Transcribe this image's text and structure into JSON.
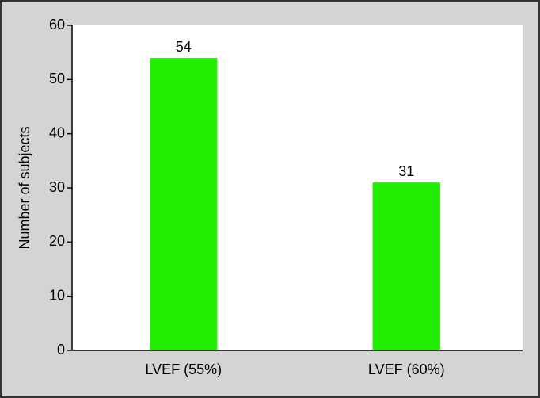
{
  "chart_data": {
    "type": "bar",
    "y_label": "Number of subjects",
    "categories": [
      "LVEF (55%)",
      "LVEF (60%)"
    ],
    "values": [
      54,
      31
    ],
    "color": "#22ee00",
    "ylim": [
      0,
      60
    ],
    "yticks": [
      0,
      10,
      20,
      30,
      40,
      50,
      60
    ]
  }
}
